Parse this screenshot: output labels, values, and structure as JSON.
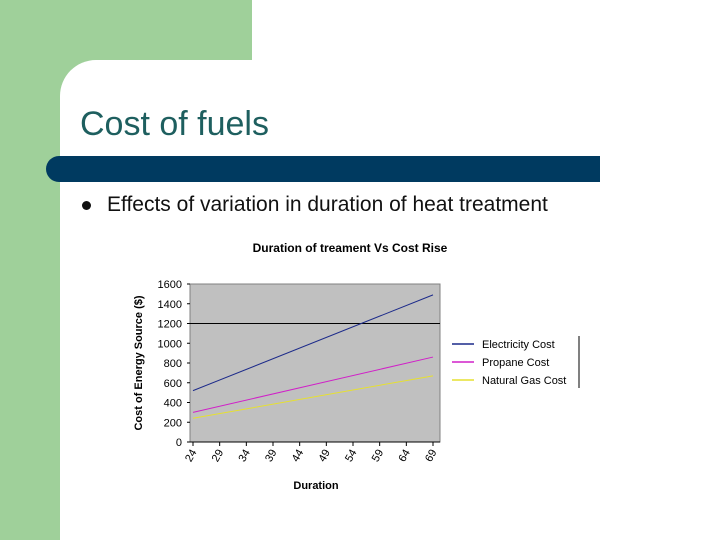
{
  "slide": {
    "title": "Cost of fuels",
    "bullet": "Effects of variation in duration of heat treatment"
  },
  "chart_data": {
    "type": "line",
    "title": "Duration of treament Vs Cost Rise",
    "xlabel": "Duration",
    "ylabel": "Cost of Energy Source ($)",
    "x": [
      24,
      69
    ],
    "xticks": [
      "24",
      "29",
      "34",
      "39",
      "44",
      "49",
      "54",
      "59",
      "64",
      "69"
    ],
    "yticks": [
      "0",
      "200",
      "400",
      "600",
      "800",
      "1000",
      "1200",
      "1400",
      "1600"
    ],
    "ylim": [
      0,
      1600
    ],
    "grid": "horizontal line at 1200",
    "legend": "right",
    "series": [
      {
        "name": "Electricity Cost",
        "values": [
          520,
          1490
        ],
        "color": "#1c2a8a"
      },
      {
        "name": "Propane Cost",
        "values": [
          300,
          860
        ],
        "color": "#d020c8"
      },
      {
        "name": "Natural Gas Cost",
        "values": [
          240,
          670
        ],
        "color": "#e6e030"
      }
    ]
  }
}
